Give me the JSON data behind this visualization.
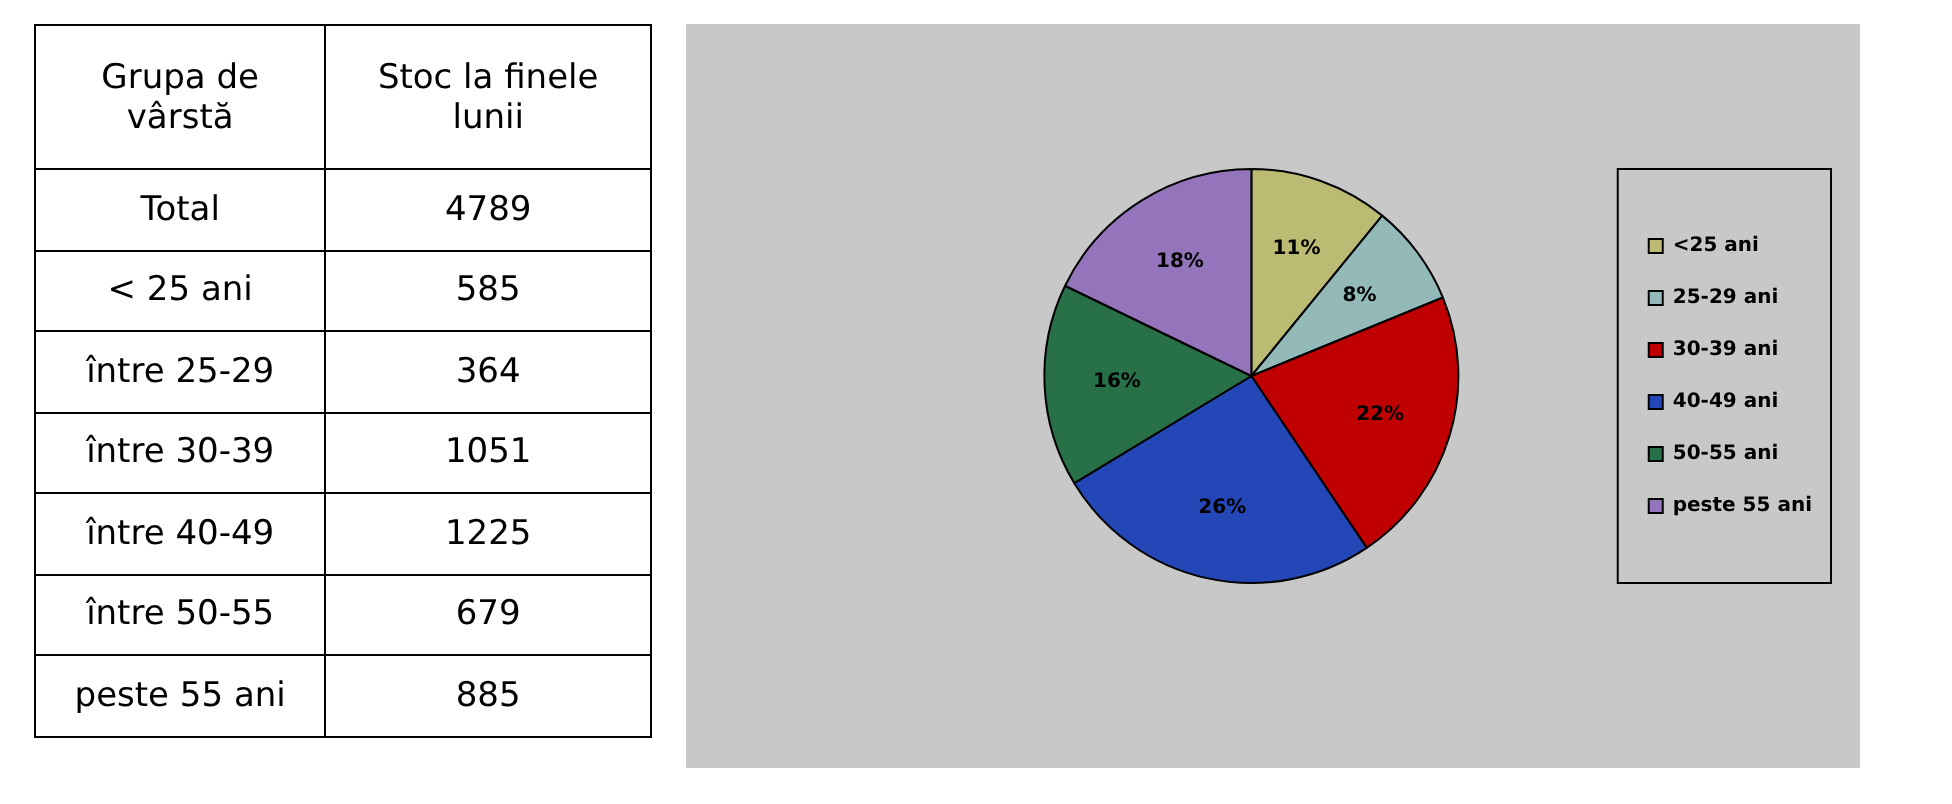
{
  "chart_data": [
    {
      "type": "other",
      "annotations": [
        "Grupa de vârstă",
        "Stoc la finele lunii"
      ],
      "categories": [
        "Total",
        "< 25 ani",
        "între 25-29",
        "între 30-39",
        "între 40-49",
        "între 50-55",
        "peste 55 ani"
      ],
      "values": [
        4789,
        585,
        364,
        1051,
        1225,
        679,
        885
      ],
      "data_labels": true
    },
    {
      "type": "pie",
      "categories": [
        "<25 ani",
        "25-29 ani",
        "30-39 ani",
        "40-49 ani",
        "50-55 ani",
        "peste 55 ani"
      ],
      "values": [
        11,
        8,
        22,
        26,
        16,
        18
      ],
      "value_labels": [
        "11%",
        "8%",
        "22%",
        "26%",
        "16%",
        "18%"
      ],
      "colors": [
        "#bcbb74",
        "#93bab9",
        "#c00000",
        "#2447b8",
        "#277048",
        "#9474bb"
      ],
      "legend": "right"
    }
  ]
}
